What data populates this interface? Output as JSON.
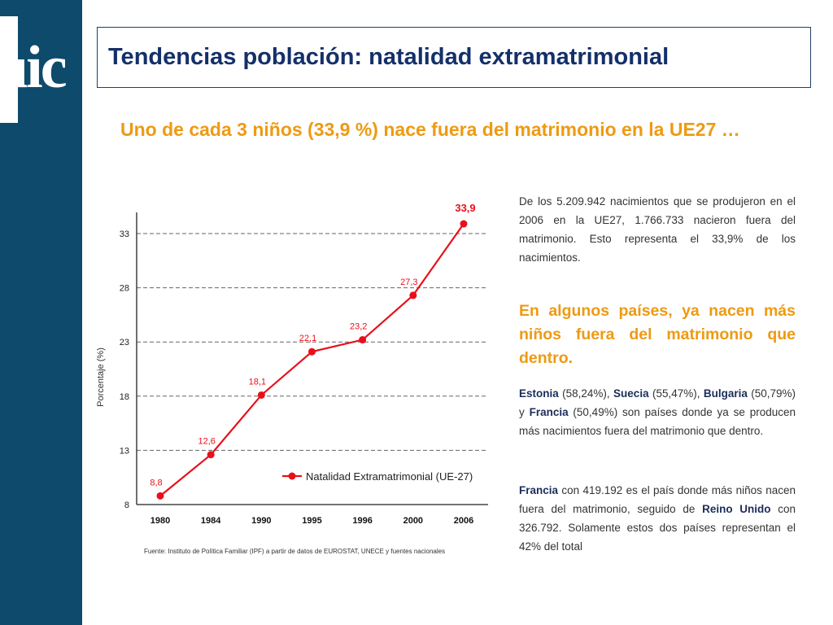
{
  "logo": {
    "text": "uic"
  },
  "title": "Tendencias población: natalidad extramatrimonial",
  "subtitle": "Uno de cada 3 niños (33,9 %) nace fuera del matrimonio en la UE27 …",
  "chart_data": {
    "type": "line",
    "x": [
      "1980",
      "1984",
      "1990",
      "1995",
      "1996",
      "2000",
      "2006"
    ],
    "series": [
      {
        "name": "Natalidad Extramatrimonial (UE-27)",
        "values": [
          8.8,
          12.6,
          18.1,
          22.1,
          23.2,
          27.3,
          33.9
        ]
      }
    ],
    "data_labels": [
      "8,8",
      "12,6",
      "18,1",
      "22,1",
      "23,2",
      "27,3",
      "33,9"
    ],
    "yticks": [
      "8",
      "13",
      "18",
      "23",
      "28",
      "33"
    ],
    "ylim": [
      8,
      34.5
    ],
    "ylabel": "Porcentaje (%)",
    "xlabel": "",
    "grid": "horizontal dashed",
    "legend_position": "bottom-right",
    "source": "Fuente: Instituto de Política Familiar (IPF) a partir de datos de EUROSTAT, UNECE y fuentes nacionales",
    "colors": {
      "line": "#e8101a",
      "label_last": "#e8101a"
    }
  },
  "text": {
    "p1": "De los 5.209.942 nacimientos que se produjeron en el 2006 en la UE27, 1.766.733 nacieron fuera del matrimonio. Esto representa el 33,9% de los nacimientos.",
    "heading": "En algunos países, ya nacen más niños fuera del matrimonio que dentro.",
    "p2": {
      "c1": "Estonia",
      "v1": " (58,24%), ",
      "c2": "Suecia",
      "v2": " (55,47%), ",
      "c3": "Bulgaria",
      "v3": " (50,79%) y ",
      "c4": "Francia",
      "v4": " (50,49%) son países donde ya se producen más nacimientos fuera del matrimonio que dentro."
    },
    "p3": {
      "c1": "Francia",
      "t1": " con 419.192 es el país donde más niños nacen fuera del matrimonio, seguido de ",
      "c2": "Reino Unido",
      "t2": " con 326.792. Solamente estos dos países representan el 42% del total"
    }
  }
}
